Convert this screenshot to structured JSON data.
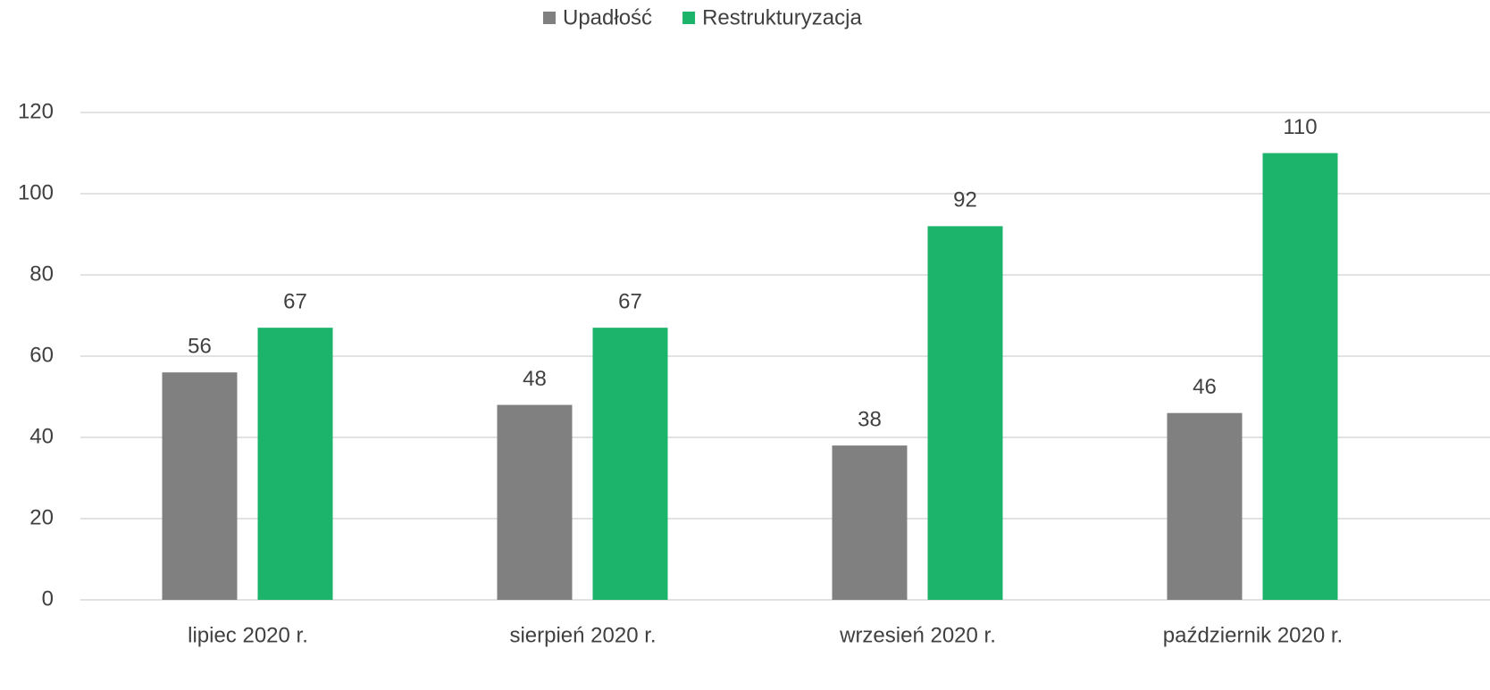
{
  "chart_data": {
    "type": "bar",
    "categories": [
      "lipiec 2020 r.",
      "sierpień 2020 r.",
      "wrzesień 2020 r.",
      "październik 2020 r."
    ],
    "series": [
      {
        "name": "Upadłość",
        "color": "#808080",
        "values": [
          56,
          48,
          38,
          46
        ]
      },
      {
        "name": "Restrukturyzacja",
        "color": "#1cb36b",
        "values": [
          67,
          67,
          92,
          110
        ]
      }
    ],
    "ylim": [
      0,
      120
    ],
    "yticks": [
      0,
      20,
      40,
      60,
      80,
      100,
      120
    ],
    "grid": true,
    "legend": "top"
  }
}
